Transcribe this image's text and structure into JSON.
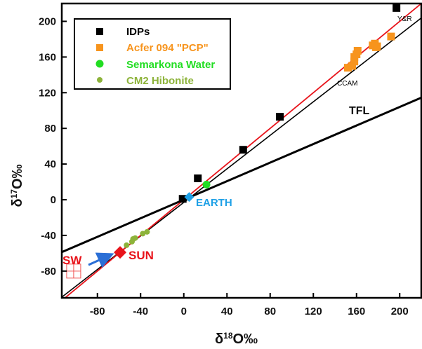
{
  "chart_data": {
    "type": "scatter",
    "xlabel": {
      "delta": "δ",
      "sup": "18",
      "rest": "O‰"
    },
    "ylabel": {
      "delta": "δ",
      "sup": "17",
      "rest": "O‰"
    },
    "xlim": [
      -113,
      220
    ],
    "ylim": [
      -110,
      220
    ],
    "xticks": [
      -80,
      -40,
      0,
      40,
      80,
      120,
      160,
      200
    ],
    "yticks": [
      -80,
      -40,
      0,
      40,
      80,
      120,
      160,
      200
    ],
    "tick_labels_x": [
      "-80",
      "-40",
      "0",
      "40",
      "80",
      "120",
      "160",
      "200"
    ],
    "tick_labels_y": [
      "-80",
      "-40",
      "0",
      "40",
      "80",
      "120",
      "160",
      "200"
    ],
    "legend_position": "top-left",
    "series": [
      {
        "name": "IDPs",
        "marker": "square",
        "color": "#000000",
        "points": [
          [
            -1,
            1
          ],
          [
            13,
            24
          ],
          [
            55,
            56
          ],
          [
            89,
            93
          ],
          [
            197,
            215
          ]
        ]
      },
      {
        "name": "Acfer 094 \"PCP\"",
        "marker": "square",
        "color": "#f7941d",
        "points": [
          [
            152,
            148
          ],
          [
            156,
            150
          ],
          [
            158,
            155
          ],
          [
            158,
            160
          ],
          [
            160,
            163
          ],
          [
            161,
            167
          ],
          [
            175,
            173
          ],
          [
            177,
            175
          ],
          [
            178,
            171
          ],
          [
            179,
            172
          ],
          [
            192,
            183
          ]
        ]
      },
      {
        "name": "Semarkona Water",
        "marker": "circle",
        "color": "#22dd22",
        "points": [
          [
            21,
            17
          ]
        ]
      },
      {
        "name": "CM2 Hibonite",
        "marker": "circle",
        "color": "#8db33a",
        "points": [
          [
            -53,
            -51
          ],
          [
            -48,
            -47
          ],
          [
            -47,
            -44
          ],
          [
            -45,
            -43
          ],
          [
            -38,
            -38
          ],
          [
            -34,
            -36
          ]
        ]
      }
    ],
    "special_points": [
      {
        "label": "EARTH",
        "x": 5,
        "y": 3,
        "marker": "diamond",
        "color": "#1ea0e6"
      },
      {
        "label": "SUN",
        "x": -59,
        "y": -59,
        "marker": "diamond",
        "color": "#e8141b"
      },
      {
        "label": "SW",
        "x": -102,
        "y": -80,
        "marker": "open-square",
        "color": "#f05050"
      }
    ],
    "lines": [
      {
        "name": "TFL",
        "slope": 0.52,
        "intercept": 0,
        "color": "#000000"
      },
      {
        "name": "CCAM",
        "slope": 0.94,
        "intercept": -3,
        "color": "#000000"
      },
      {
        "name": "Y&R",
        "slope": 1.0,
        "intercept": 0,
        "color": "#e8141b"
      }
    ],
    "line_labels": {
      "TFL": "TFL",
      "CCAM": "CCAM",
      "YR": "Y&R"
    },
    "point_labels": {
      "earth": "EARTH",
      "sun": "SUN",
      "sw": "SW"
    }
  },
  "colors": {
    "sw_arrow": "#2b6fd6"
  }
}
